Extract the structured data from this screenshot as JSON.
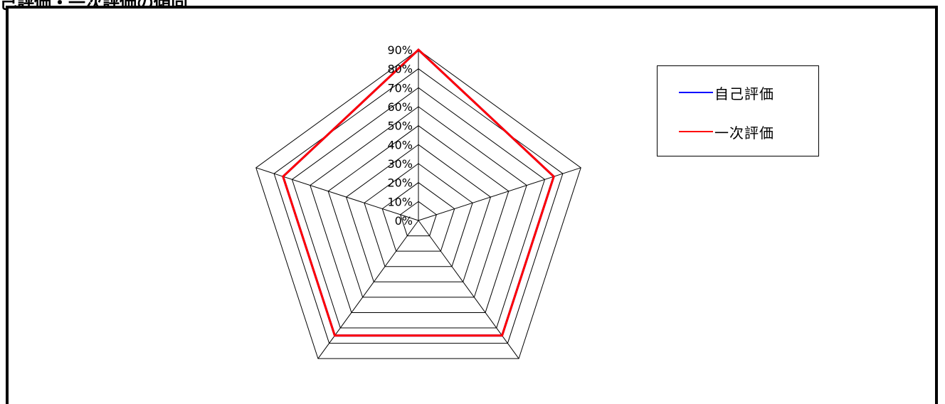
{
  "page": {
    "title": "己評価・一次評価の傾向"
  },
  "chart_data": {
    "type": "radar",
    "title": "",
    "axes_count": 5,
    "categories": [
      "",
      "",
      "",
      "",
      ""
    ],
    "r_ticks": [
      "0%",
      "10%",
      "20%",
      "30%",
      "40%",
      "50%",
      "60%",
      "70%",
      "80%",
      "90%"
    ],
    "rlim": [
      0,
      0.9
    ],
    "grid": true,
    "series": [
      {
        "name": "自己評価",
        "color": "#0000ff",
        "values": [
          0.9,
          0.75,
          0.75,
          0.75,
          0.75
        ]
      },
      {
        "name": "一次評価",
        "color": "#ff0000",
        "values": [
          0.9,
          0.75,
          0.75,
          0.75,
          0.75
        ]
      }
    ],
    "legend": {
      "position": "top-right"
    }
  }
}
